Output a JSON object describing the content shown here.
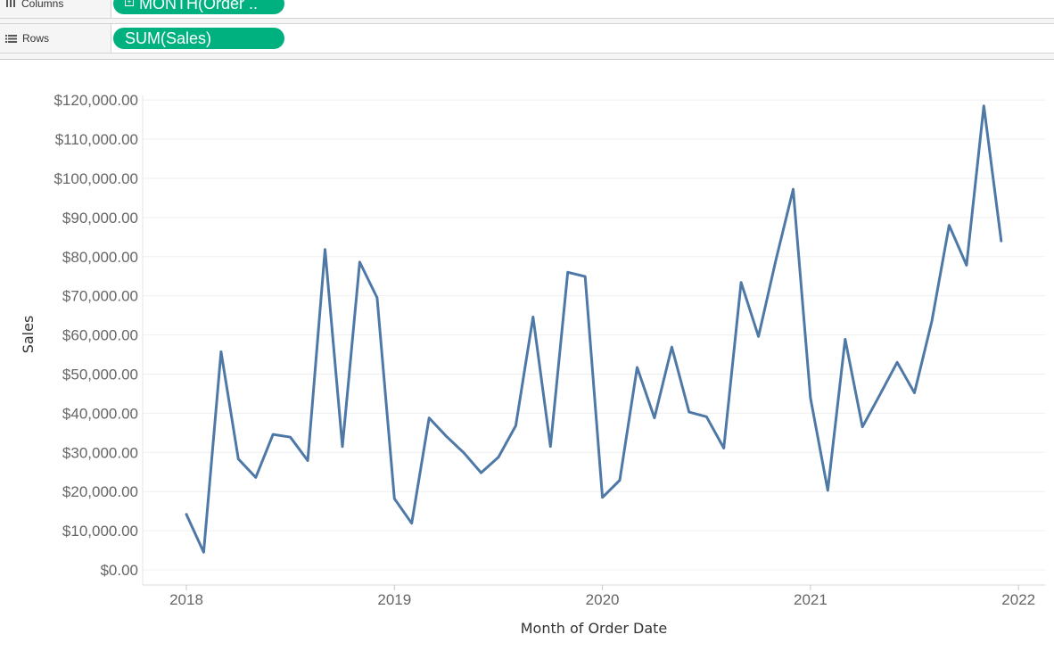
{
  "shelves": {
    "columns": {
      "label": "Columns",
      "pill": "MONTH(Order ..",
      "icon": "columns-icon"
    },
    "rows": {
      "label": "Rows",
      "pill": "SUM(Sales)",
      "icon": "rows-icon"
    }
  },
  "colors": {
    "pill": "#00b180",
    "line": "#4e79a7",
    "grid": "#efefef"
  },
  "chart_data": {
    "type": "line",
    "xlabel": "Month of Order Date",
    "ylabel": "Sales",
    "ylim": [
      0,
      125000
    ],
    "xlim": [
      "2018-01",
      "2022-01"
    ],
    "y_ticks": [
      0,
      10000,
      20000,
      30000,
      40000,
      50000,
      60000,
      70000,
      80000,
      90000,
      100000,
      110000,
      120000
    ],
    "y_tick_labels": [
      "$0.00",
      "$10,000.00",
      "$20,000.00",
      "$30,000.00",
      "$40,000.00",
      "$50,000.00",
      "$60,000.00",
      "$70,000.00",
      "$80,000.00",
      "$90,000.00",
      "$100,000.00",
      "$110,000.00",
      "$120,000.00"
    ],
    "x_tick_labels": [
      "2018",
      "2019",
      "2020",
      "2021",
      "2022"
    ],
    "grid": "horizontal",
    "series": [
      {
        "x": [
          "2018-01",
          "2018-02",
          "2018-03",
          "2018-04",
          "2018-05",
          "2018-06",
          "2018-07",
          "2018-08",
          "2018-09",
          "2018-10",
          "2018-11",
          "2018-12",
          "2019-01",
          "2019-02",
          "2019-03",
          "2019-04",
          "2019-05",
          "2019-06",
          "2019-07",
          "2019-08",
          "2019-09",
          "2019-10",
          "2019-11",
          "2019-12",
          "2020-01",
          "2020-02",
          "2020-03",
          "2020-04",
          "2020-05",
          "2020-06",
          "2020-07",
          "2020-08",
          "2020-09",
          "2020-10",
          "2020-11",
          "2020-12",
          "2021-01",
          "2021-02",
          "2021-03",
          "2021-04",
          "2021-05",
          "2021-06",
          "2021-07",
          "2021-08",
          "2021-09",
          "2021-10",
          "2021-11",
          "2021-12"
        ],
        "values": [
          14200,
          4500,
          55700,
          28300,
          23600,
          34600,
          33900,
          27900,
          81800,
          31500,
          78600,
          69500,
          18200,
          11900,
          38800,
          34100,
          29900,
          24800,
          28800,
          36800,
          64600,
          31500,
          76000,
          74900,
          18500,
          22900,
          51700,
          38800,
          56900,
          40300,
          39100,
          31100,
          73400,
          59600,
          79000,
          97200,
          43900,
          20300,
          58900,
          36500,
          44700,
          53000,
          45200,
          63500,
          88000,
          77800,
          118500,
          84000
        ]
      }
    ]
  }
}
